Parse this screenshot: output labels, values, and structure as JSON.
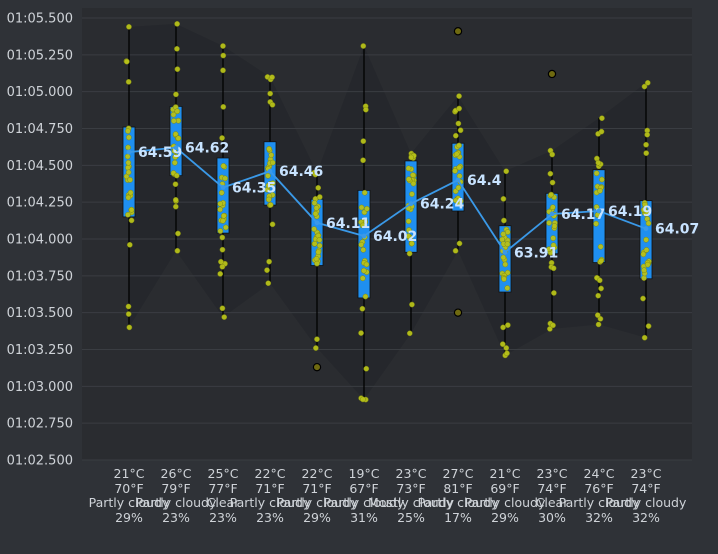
{
  "chart_data": {
    "type": "box",
    "title": "",
    "xlabel": "",
    "ylabel": "",
    "ylim": [
      "01:02.500",
      "01:05.500"
    ],
    "y_ticks": [
      "01:02.500",
      "01:02.750",
      "01:03.000",
      "01:03.250",
      "01:03.500",
      "01:03.750",
      "01:04.000",
      "01:04.250",
      "01:04.500",
      "01:04.750",
      "01:05.000",
      "01:05.250",
      "01:05.500"
    ],
    "grid": true,
    "categories": [
      {
        "temp_c": "21°C",
        "temp_f": "70°F",
        "condition": "Partly cloudy",
        "humidity": "29%"
      },
      {
        "temp_c": "26°C",
        "temp_f": "79°F",
        "condition": "Partly cloudy",
        "humidity": "23%"
      },
      {
        "temp_c": "25°C",
        "temp_f": "77°F",
        "condition": "Clear",
        "humidity": "23%"
      },
      {
        "temp_c": "22°C",
        "temp_f": "71°F",
        "condition": "Partly cloudy",
        "humidity": "23%"
      },
      {
        "temp_c": "22°C",
        "temp_f": "71°F",
        "condition": "Partly cloudy",
        "humidity": "29%"
      },
      {
        "temp_c": "19°C",
        "temp_f": "67°F",
        "condition": "Partly cloudy",
        "humidity": "31%"
      },
      {
        "temp_c": "23°C",
        "temp_f": "73°F",
        "condition": "Mostly cloudy",
        "humidity": "25%"
      },
      {
        "temp_c": "27°C",
        "temp_f": "81°F",
        "condition": "Partly cloudy",
        "humidity": "17%"
      },
      {
        "temp_c": "21°C",
        "temp_f": "69°F",
        "condition": "Partly cloudy",
        "humidity": "29%"
      },
      {
        "temp_c": "23°C",
        "temp_f": "74°F",
        "condition": "Clear",
        "humidity": "30%"
      },
      {
        "temp_c": "24°C",
        "temp_f": "76°F",
        "condition": "Partly cloudy",
        "humidity": "32%"
      },
      {
        "temp_c": "23°C",
        "temp_f": "74°F",
        "condition": "Partly cloudy",
        "humidity": "32%"
      }
    ],
    "series": [
      {
        "name": "",
        "means": [
          64.59,
          64.62,
          64.35,
          64.46,
          64.11,
          64.02,
          64.24,
          64.4,
          63.91,
          64.17,
          64.19,
          64.07
        ],
        "mean_labels": [
          "64.59",
          "64.62",
          "64.35",
          "64.46",
          "64.11",
          "64.02",
          "64.24",
          "64.4",
          "63.91",
          "64.17",
          "64.19",
          "64.07"
        ],
        "boxes": [
          {
            "q1": 64.15,
            "q3": 64.76,
            "whislo": 63.4,
            "whishi": 65.44,
            "outliers": []
          },
          {
            "q1": 64.43,
            "q3": 64.9,
            "whislo": 63.92,
            "whishi": 65.46,
            "outliers": []
          },
          {
            "q1": 64.04,
            "q3": 64.55,
            "whislo": 63.47,
            "whishi": 65.31,
            "outliers": []
          },
          {
            "q1": 64.23,
            "q3": 64.66,
            "whislo": 63.7,
            "whishi": 65.1,
            "outliers": []
          },
          {
            "q1": 63.82,
            "q3": 64.27,
            "whislo": 63.26,
            "whishi": 64.45,
            "outliers": [
              63.13
            ]
          },
          {
            "q1": 63.6,
            "q3": 64.33,
            "whislo": 62.91,
            "whishi": 65.31,
            "outliers": []
          },
          {
            "q1": 63.91,
            "q3": 64.53,
            "whislo": 63.36,
            "whishi": 64.58,
            "outliers": []
          },
          {
            "q1": 64.19,
            "q3": 64.65,
            "whislo": 63.92,
            "whishi": 64.97,
            "outliers": [
              65.41,
              63.5
            ]
          },
          {
            "q1": 63.64,
            "q3": 64.09,
            "whislo": 63.21,
            "whishi": 64.46,
            "outliers": []
          },
          {
            "q1": 63.9,
            "q3": 64.31,
            "whislo": 63.39,
            "whishi": 64.6,
            "outliers": [
              65.12
            ]
          },
          {
            "q1": 63.84,
            "q3": 64.47,
            "whislo": 63.42,
            "whishi": 64.82,
            "outliers": []
          },
          {
            "q1": 63.73,
            "q3": 64.26,
            "whislo": 63.33,
            "whishi": 65.06,
            "outliers": []
          }
        ]
      }
    ],
    "colors": {
      "background": "#2f3237",
      "plot_bg": "#2a2c30",
      "grid": "#3a3d42",
      "box_fill": "#1f8ff0",
      "mean_line": "#3a99e8",
      "points": "#b8c21a",
      "whisker": "#000000",
      "band": "#25272b"
    }
  }
}
